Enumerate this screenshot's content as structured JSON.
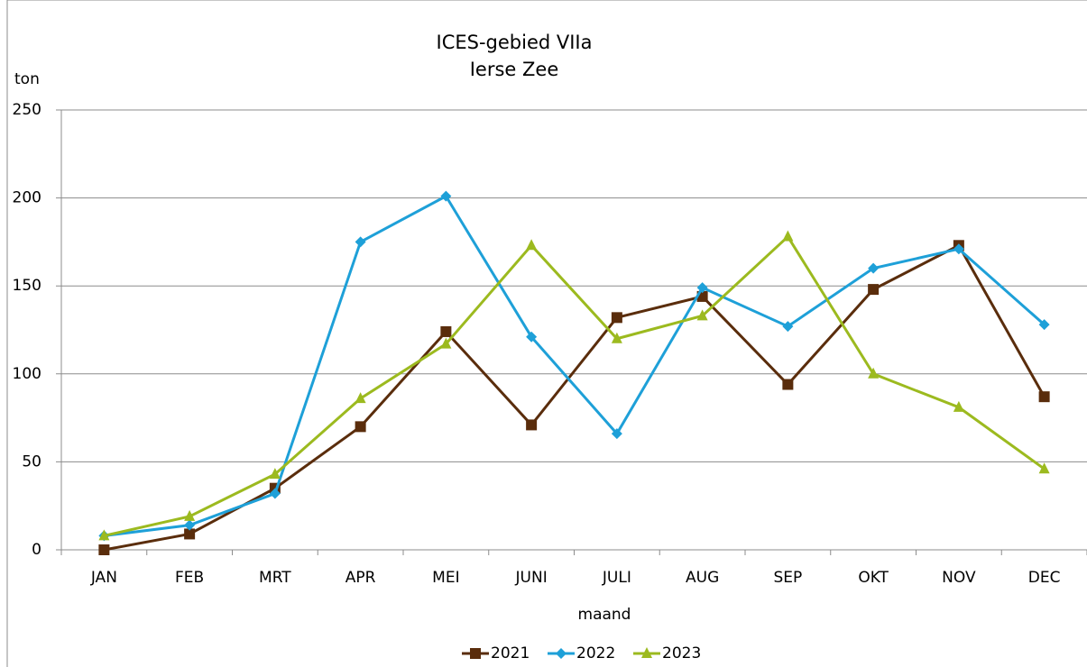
{
  "chart_data": {
    "type": "line",
    "title": "ICES-gebied VIIa",
    "subtitle": "Ierse Zee",
    "y_label": "ton",
    "x_label": "maand",
    "categories": [
      "JAN",
      "FEB",
      "MRT",
      "APR",
      "MEI",
      "JUNI",
      "JULI",
      "AUG",
      "SEP",
      "OKT",
      "NOV",
      "DEC"
    ],
    "series": [
      {
        "name": "2021",
        "color": "#5a2d0c",
        "marker": "square",
        "values": [
          0,
          9,
          35,
          70,
          124,
          71,
          132,
          144,
          94,
          148,
          173,
          87
        ]
      },
      {
        "name": "2022",
        "color": "#1ea0d8",
        "marker": "diamond",
        "values": [
          8,
          14,
          32,
          175,
          201,
          121,
          66,
          149,
          127,
          160,
          171,
          128
        ]
      },
      {
        "name": "2023",
        "color": "#9cba1f",
        "marker": "triangle",
        "values": [
          8,
          19,
          43,
          86,
          117,
          173,
          120,
          133,
          178,
          100,
          81,
          46
        ]
      }
    ],
    "ylim": [
      0,
      250
    ],
    "yticks": [
      0,
      50,
      100,
      150,
      200,
      250
    ],
    "grid": true,
    "legend": "bottom"
  }
}
